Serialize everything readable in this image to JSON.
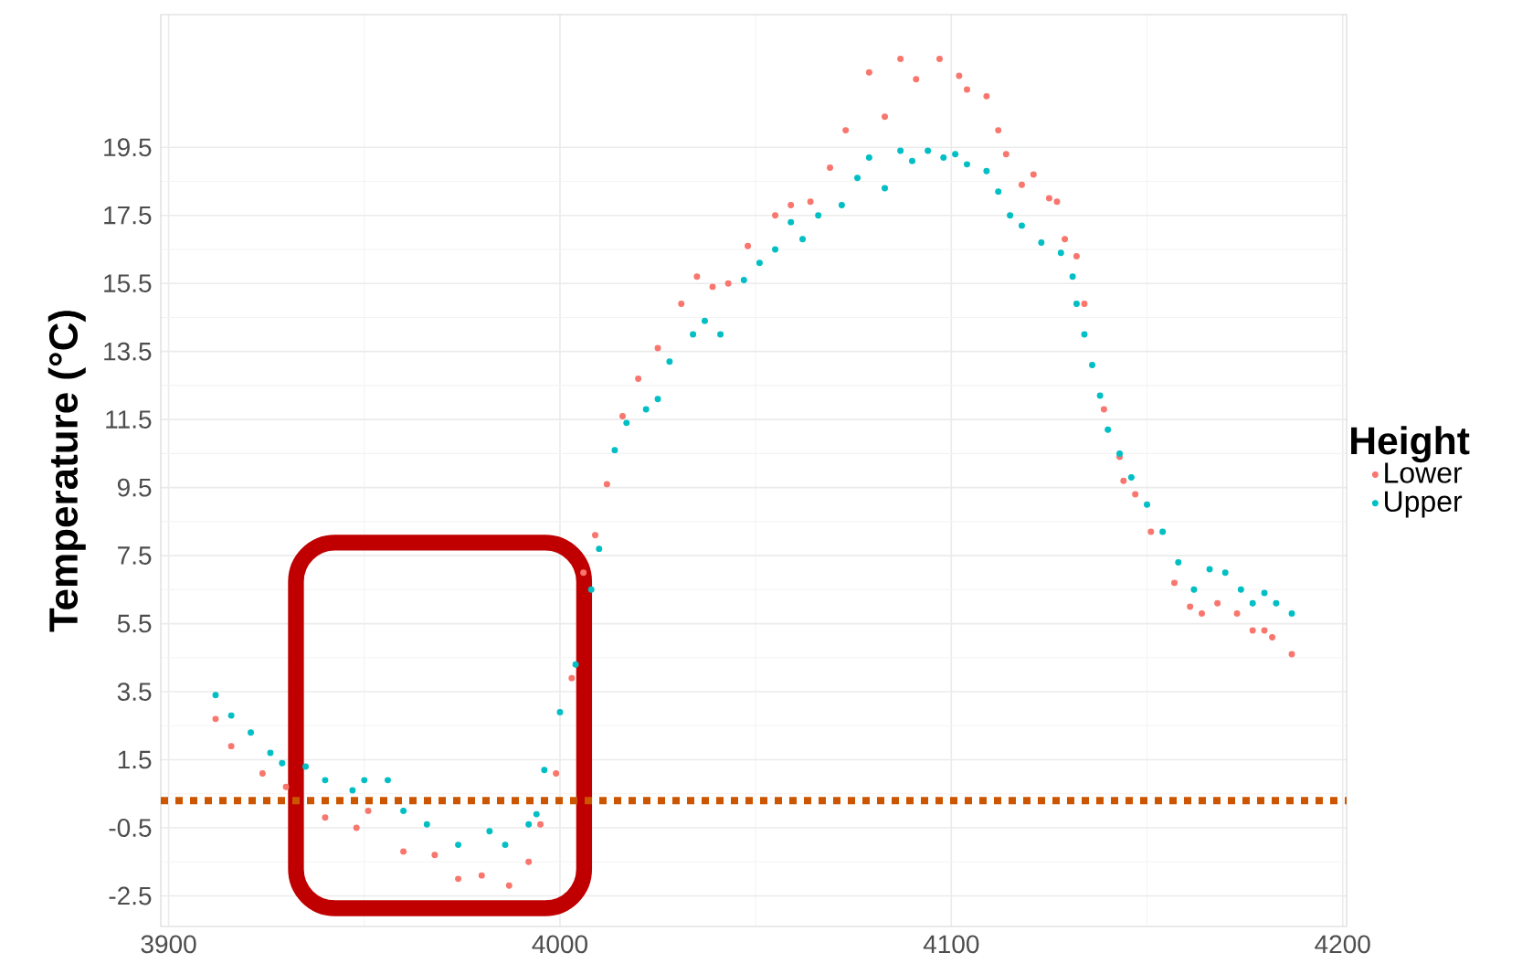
{
  "chart_data": {
    "type": "scatter",
    "ylabel": "Temperature (°C)",
    "legend_title": "Height",
    "legend": "right",
    "grid": true,
    "marker": "circle",
    "xlim": [
      3898,
      4201
    ],
    "ylim": [
      -3.4,
      23.4
    ],
    "xticks": [
      3900,
      4000,
      4100,
      4200
    ],
    "yticks": [
      -2.5,
      -0.5,
      1.5,
      3.5,
      5.5,
      7.5,
      9.5,
      11.5,
      13.5,
      15.5,
      17.5,
      19.5
    ],
    "ref_lines": [
      {
        "axis": "y",
        "value": 0.3,
        "color": "#cc5500",
        "line_style": "dotted"
      }
    ],
    "series": [
      {
        "name": "Lower",
        "color": "#f8766d",
        "x": [
          3912,
          3916,
          3924,
          3930,
          3940,
          3948,
          3951,
          3960,
          3968,
          3974,
          3980,
          3987,
          3992,
          3995,
          3999,
          4003,
          4006,
          4009,
          4012,
          4016,
          4020,
          4025,
          4031,
          4035,
          4039,
          4043,
          4048,
          4055,
          4059,
          4064,
          4069,
          4073,
          4079,
          4083,
          4087,
          4091,
          4097,
          4102,
          4104,
          4109,
          4112,
          4114,
          4118,
          4121,
          4125,
          4127,
          4129,
          4132,
          4134,
          4139,
          4143,
          4144,
          4147,
          4151,
          4157,
          4161,
          4164,
          4168,
          4173,
          4177,
          4180,
          4182,
          4187
        ],
        "values": [
          2.7,
          1.9,
          1.1,
          0.7,
          -0.2,
          -0.5,
          0.0,
          -1.2,
          -1.3,
          -2.0,
          -1.9,
          -2.2,
          -1.5,
          -0.4,
          1.1,
          3.9,
          7.0,
          8.1,
          9.6,
          11.6,
          12.7,
          13.6,
          14.9,
          15.7,
          15.4,
          15.5,
          16.6,
          17.5,
          17.8,
          17.9,
          18.9,
          20.0,
          21.7,
          20.4,
          22.1,
          21.5,
          22.1,
          21.6,
          21.2,
          21.0,
          20.0,
          19.3,
          18.4,
          18.7,
          18.0,
          17.9,
          16.8,
          16.3,
          14.9,
          11.8,
          10.4,
          9.7,
          9.3,
          8.2,
          6.7,
          6.0,
          5.8,
          6.1,
          5.8,
          5.3,
          5.3,
          5.1,
          4.6
        ]
      },
      {
        "name": "Upper",
        "color": "#00bfc4",
        "x": [
          3912,
          3916,
          3921,
          3926,
          3929,
          3935,
          3940,
          3947,
          3950,
          3956,
          3960,
          3966,
          3974,
          3982,
          3986,
          3992,
          3994,
          3996,
          4000,
          4004,
          4008,
          4010,
          4014,
          4017,
          4022,
          4025,
          4028,
          4034,
          4037,
          4041,
          4047,
          4051,
          4055,
          4059,
          4062,
          4066,
          4072,
          4076,
          4079,
          4083,
          4087,
          4090,
          4094,
          4098,
          4101,
          4104,
          4109,
          4112,
          4115,
          4118,
          4123,
          4128,
          4131,
          4132,
          4134,
          4136,
          4138,
          4140,
          4143,
          4146,
          4150,
          4154,
          4158,
          4162,
          4166,
          4170,
          4174,
          4177,
          4180,
          4183,
          4187
        ],
        "values": [
          3.4,
          2.8,
          2.3,
          1.7,
          1.4,
          1.3,
          0.9,
          0.6,
          0.9,
          0.9,
          0.0,
          -0.4,
          -1.0,
          -0.6,
          -1.0,
          -0.4,
          -0.1,
          1.2,
          2.9,
          4.3,
          6.5,
          7.7,
          10.6,
          11.4,
          11.8,
          12.1,
          13.2,
          14.0,
          14.4,
          14.0,
          15.6,
          16.1,
          16.5,
          17.3,
          16.8,
          17.5,
          17.8,
          18.6,
          19.2,
          18.3,
          19.4,
          19.1,
          19.4,
          19.2,
          19.3,
          19.0,
          18.8,
          18.2,
          17.5,
          17.2,
          16.7,
          16.4,
          15.7,
          14.9,
          14.0,
          13.1,
          12.2,
          11.2,
          10.5,
          9.8,
          9.0,
          8.2,
          7.3,
          6.5,
          7.1,
          7.0,
          6.5,
          6.1,
          6.4,
          6.1,
          5.8
        ]
      }
    ]
  }
}
